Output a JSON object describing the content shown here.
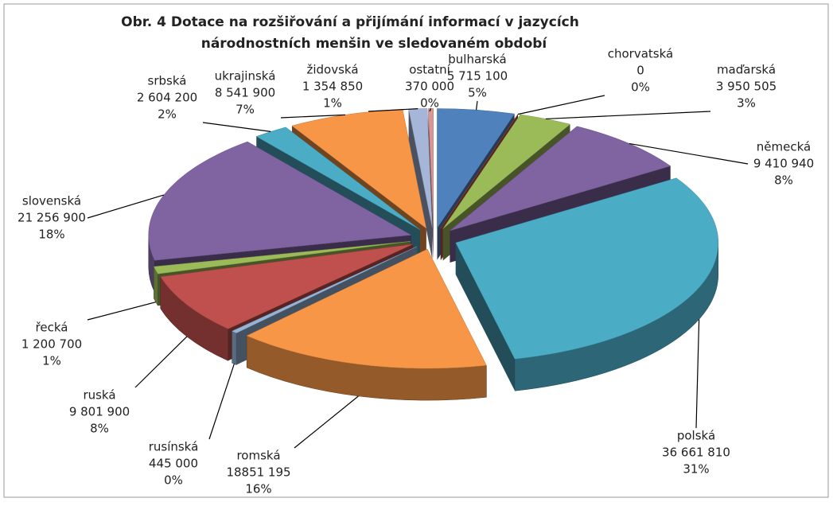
{
  "chart_data": {
    "type": "pie",
    "title": [
      "Obr. 4 Dotace na rozšiřování a přijímání informací v jazycích",
      "národnostních menšin ve sledovaném období"
    ],
    "categories": [
      "bulharská",
      "chorvatská",
      "maďarská",
      "německá",
      "polská",
      "romská",
      "rusínská",
      "ruská",
      "řecká",
      "slovenská",
      "srbská",
      "ukrajinská",
      "židovská",
      "ostatní"
    ],
    "values": [
      5715100,
      0,
      3950505,
      9410940,
      36661810,
      18851195,
      445000,
      9801900,
      1200700,
      21256900,
      2604200,
      8541900,
      1354850,
      370000
    ],
    "value_labels": [
      "5 715 100",
      "0",
      "3 950 505",
      "9 410 940",
      "36 661 810",
      "18851 195",
      "445 000",
      "9 801 900",
      "1 200 700",
      "21 256 900",
      "2 604 200",
      "8 541 900",
      "1 354 850",
      "370 000"
    ],
    "percents": [
      5,
      0,
      3,
      8,
      31,
      16,
      0,
      8,
      1,
      18,
      2,
      7,
      1,
      0
    ],
    "percent_labels": [
      "5%",
      "0%",
      "3%",
      "8%",
      "31%",
      "16%",
      "0%",
      "8%",
      "1%",
      "18%",
      "2%",
      "7%",
      "1%",
      "0%"
    ],
    "colors": [
      "#4f81bd",
      "#c0504d",
      "#9bbb59",
      "#8064a2",
      "#4bacc6",
      "#f79646",
      "#95b3d7",
      "#c0504d",
      "#9bbb59",
      "#8064a2",
      "#4bacc6",
      "#f79646",
      "#a5b6d9",
      "#d99694"
    ]
  }
}
